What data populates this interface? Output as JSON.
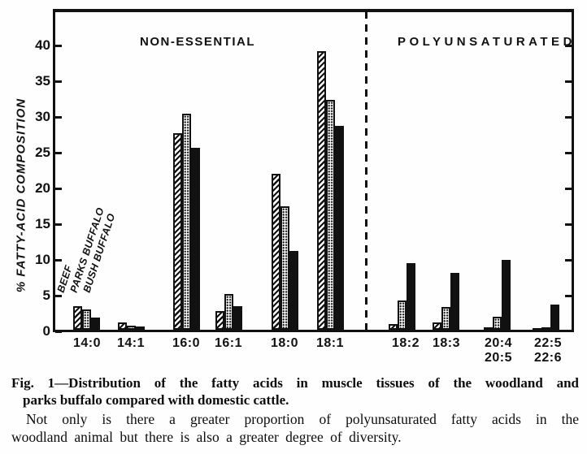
{
  "chart_data": {
    "type": "bar",
    "title": "",
    "ylabel": "% FATTY-ACID COMPOSITION",
    "xlabel": "",
    "ylim": [
      0,
      44
    ],
    "yticks": [
      0,
      5,
      10,
      15,
      20,
      25,
      30,
      35,
      40
    ],
    "grid": false,
    "legend_position": "rotated-labels-above-first-group",
    "sections": {
      "left": "NON-ESSENTIAL",
      "right": "POLYUNSATURATED"
    },
    "categories": [
      [
        "14:0"
      ],
      [
        "14:1"
      ],
      [
        "16:0"
      ],
      [
        "16:1"
      ],
      [
        "18:0"
      ],
      [
        "18:1"
      ],
      [
        "18:2"
      ],
      [
        "18:3"
      ],
      [
        "20:4",
        "20:5"
      ],
      [
        "22:5",
        "22:6"
      ]
    ],
    "section_split_after_category": "18:1",
    "series": [
      {
        "name": "BEEF",
        "pattern": "diagonal-hatch",
        "values": [
          3.3,
          1.0,
          27.5,
          2.6,
          21.8,
          39.0,
          0.8,
          1.0,
          0.3,
          0.2
        ]
      },
      {
        "name": "PARKS BUFFALO",
        "pattern": "stipple-dots",
        "values": [
          2.8,
          0.6,
          30.2,
          5.0,
          17.3,
          32.2,
          4.1,
          3.2,
          1.8,
          0.3
        ]
      },
      {
        "name": "BUSH BUFFALO",
        "pattern": "solid-black",
        "values": [
          1.7,
          0.5,
          25.5,
          3.3,
          11.0,
          28.5,
          9.3,
          8.0,
          9.8,
          3.5
        ]
      }
    ],
    "ink_color": "#111111",
    "paper_color": "#fefefe"
  },
  "caption": {
    "fig_lines": [
      "Fig. 1—Distribution of the fatty acids in muscle tissues of the woodland and",
      "parks buffalo compared with domestic cattle."
    ],
    "body_lines": [
      "Not only is there a greater proportion of polyunsaturated fatty acids in the",
      "woodland animal but there is also a greater degree of diversity."
    ]
  }
}
